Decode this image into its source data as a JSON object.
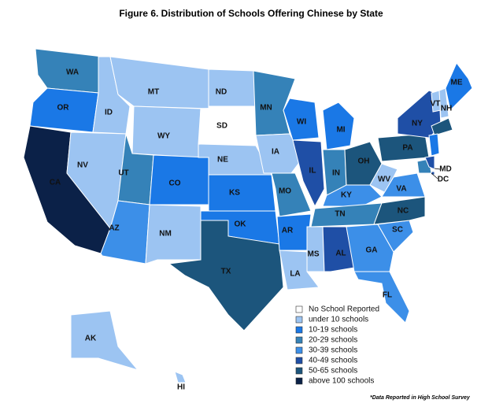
{
  "title": "Figure 6. Distribution of Schools Offering Chinese by State",
  "legend": [
    {
      "label": "No School Reported",
      "color": "#ffffff"
    },
    {
      "label": "under 10 schools",
      "color": "#9cc4f2"
    },
    {
      "label": "10-19 schools",
      "color": "#1a78e6"
    },
    {
      "label": "20-29 schools",
      "color": "#3582b8"
    },
    {
      "label": "30-39 schools",
      "color": "#3c8fe8"
    },
    {
      "label": "40-49 schools",
      "color": "#1f4fa6"
    },
    {
      "label": "50-65 schools",
      "color": "#1c557c"
    },
    {
      "label": "above 100 schools",
      "color": "#0b2148"
    }
  ],
  "states": [
    {
      "label": "WA",
      "color": "#3582b8"
    },
    {
      "label": "OR",
      "color": "#1a78e6"
    },
    {
      "label": "CA",
      "color": "#0b2148"
    },
    {
      "label": "ID",
      "color": "#9cc4f2"
    },
    {
      "label": "NV",
      "color": "#9cc4f2"
    },
    {
      "label": "MT",
      "color": "#9cc4f2"
    },
    {
      "label": "WY",
      "color": "#9cc4f2"
    },
    {
      "label": "UT",
      "color": "#3582b8"
    },
    {
      "label": "AZ",
      "color": "#3c8fe8"
    },
    {
      "label": "CO",
      "color": "#1a78e6"
    },
    {
      "label": "NM",
      "color": "#9cc4f2"
    },
    {
      "label": "ND",
      "color": "#9cc4f2"
    },
    {
      "label": "SD",
      "color": "#ffffff"
    },
    {
      "label": "NE",
      "color": "#9cc4f2"
    },
    {
      "label": "KS",
      "color": "#1a78e6"
    },
    {
      "label": "OK",
      "color": "#1a78e6"
    },
    {
      "label": "TX",
      "color": "#1c557c"
    },
    {
      "label": "MN",
      "color": "#3582b8"
    },
    {
      "label": "IA",
      "color": "#9cc4f2"
    },
    {
      "label": "MO",
      "color": "#3582b8"
    },
    {
      "label": "AR",
      "color": "#1a78e6"
    },
    {
      "label": "LA",
      "color": "#9cc4f2"
    },
    {
      "label": "WI",
      "color": "#1a78e6"
    },
    {
      "label": "IL",
      "color": "#1f4fa6"
    },
    {
      "label": "MI",
      "color": "#1a78e6"
    },
    {
      "label": "IN",
      "color": "#3582b8"
    },
    {
      "label": "OH",
      "color": "#1c557c"
    },
    {
      "label": "KY",
      "color": "#3c8fe8"
    },
    {
      "label": "TN",
      "color": "#3582b8"
    },
    {
      "label": "MS",
      "color": "#9cc4f2"
    },
    {
      "label": "AL",
      "color": "#1f4fa6"
    },
    {
      "label": "GA",
      "color": "#3c8fe8"
    },
    {
      "label": "FL",
      "color": "#3c8fe8"
    },
    {
      "label": "SC",
      "color": "#3c8fe8"
    },
    {
      "label": "NC",
      "color": "#1c557c"
    },
    {
      "label": "WV",
      "color": "#9cc4f2"
    },
    {
      "label": "VA",
      "color": "#3c8fe8"
    },
    {
      "label": "PA",
      "color": "#1c557c"
    },
    {
      "label": "NY",
      "color": "#1f4fa6"
    },
    {
      "label": "VT",
      "color": "#9cc4f2"
    },
    {
      "label": "NH",
      "color": "#9cc4f2"
    },
    {
      "label": "ME",
      "color": "#1a78e6"
    },
    {
      "label": "MD",
      "color": "#3582b8"
    },
    {
      "label": "DC",
      "color": "#1f4fa6"
    },
    {
      "label": "AK",
      "color": "#9cc4f2"
    },
    {
      "label": "HI",
      "color": "#9cc4f2"
    }
  ],
  "footnote": "*Data Reported in High School Survey"
}
